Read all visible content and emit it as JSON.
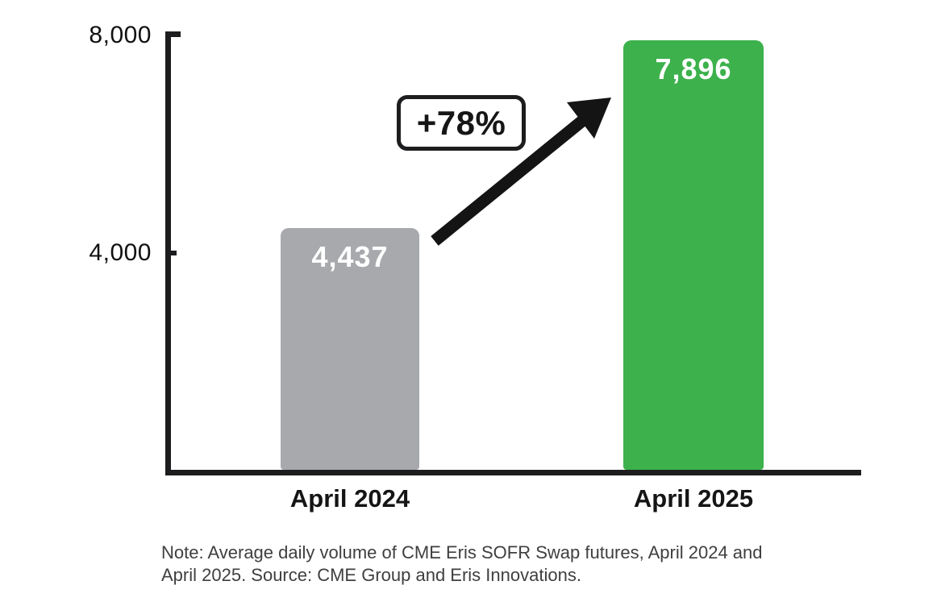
{
  "chart_data": {
    "type": "bar",
    "title": "",
    "xlabel": "",
    "ylabel": "",
    "categories": [
      "April 2024",
      "April 2025"
    ],
    "values": [
      4437,
      7896
    ],
    "value_labels": [
      "4,437",
      "7,896"
    ],
    "bar_colors": [
      "#a7a9ac",
      "#3cb14c"
    ],
    "ylim": [
      0,
      8000
    ],
    "yticks": [
      4000,
      8000
    ],
    "ytick_labels": [
      "4,000",
      "8,000"
    ],
    "grid": false,
    "legend": "none",
    "annotation": {
      "label": "+78%",
      "shape": "diagonal-up-arrow"
    },
    "note_lines": [
      "Note: Average daily volume of CME Eris SOFR Swap futures, April 2024 and",
      "April 2025. Source: CME Group and Eris Innovations."
    ]
  },
  "colors": {
    "axis": "#1d1d1f",
    "arrow": "#141414",
    "value_label_text": "#ffffff",
    "note_text": "#3f3f3f",
    "background": "#ffffff"
  }
}
